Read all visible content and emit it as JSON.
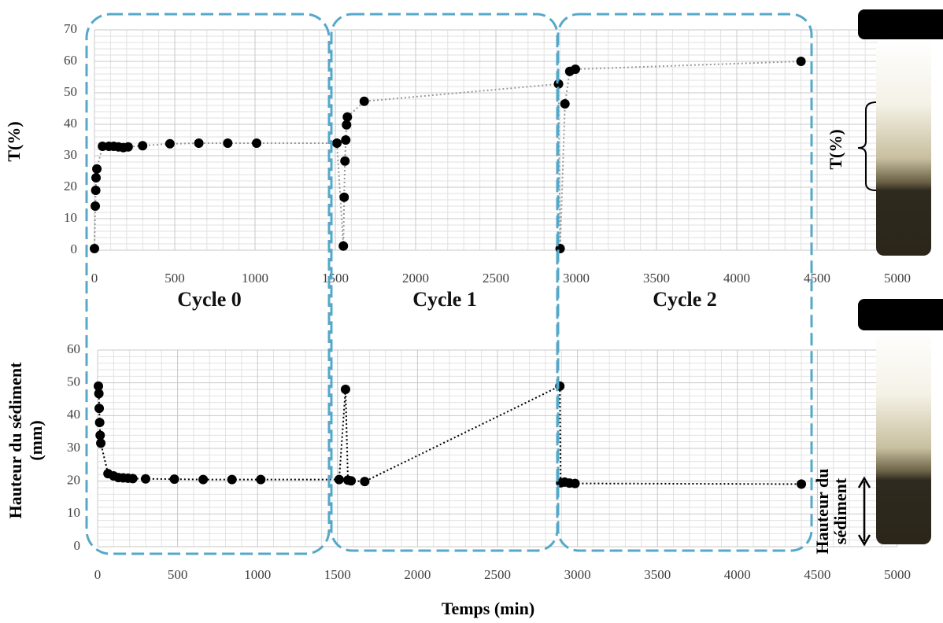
{
  "chart_data": [
    {
      "type": "line",
      "ylabel": "T(%)",
      "x": [
        0,
        5,
        8,
        10,
        15,
        50,
        90,
        120,
        150,
        180,
        210,
        300,
        470,
        650,
        830,
        1010,
        1510,
        1550,
        1555,
        1560,
        1565,
        1570,
        1575,
        1680,
        2890,
        2900,
        2930,
        2960,
        2995,
        4400
      ],
      "values": [
        0.5,
        14,
        19,
        23,
        25.8,
        33,
        33,
        33,
        32.8,
        32.6,
        32.8,
        33.2,
        33.8,
        34,
        34,
        34,
        34,
        1.3,
        16.8,
        28.3,
        35,
        39.8,
        42.3,
        47.3,
        52.8,
        0.5,
        46.5,
        56.8,
        57.5,
        60
      ],
      "color": "#000000",
      "line_color": "#999999",
      "xlim": [
        0,
        5000
      ],
      "xticks": [
        0,
        500,
        1000,
        1500,
        2000,
        2500,
        3000,
        3500,
        4000,
        4500,
        5000
      ],
      "ylim": [
        0,
        70
      ],
      "yticks": [
        0,
        10,
        20,
        30,
        40,
        50,
        60,
        70
      ],
      "grid": true,
      "annotations": [
        "Cycle 0",
        "Cycle 1",
        "Cycle 2"
      ],
      "tube_label": [
        "T(%)"
      ]
    },
    {
      "type": "line",
      "ylabel": [
        "Hauteur du sédiment",
        "(mm)"
      ],
      "xlabel": "Temps (min)",
      "x": [
        5,
        8,
        10,
        13,
        16,
        20,
        65,
        100,
        130,
        160,
        190,
        220,
        300,
        480,
        660,
        840,
        1020,
        1510,
        1550,
        1565,
        1585,
        1670,
        2890,
        2895,
        2920,
        2950,
        2985,
        4400
      ],
      "values": [
        49,
        46.7,
        42.2,
        37.9,
        34,
        31.6,
        22.3,
        21.6,
        21.1,
        21,
        20.9,
        20.8,
        20.7,
        20.6,
        20.5,
        20.5,
        20.5,
        20.5,
        48,
        20.3,
        20.1,
        19.9,
        49,
        19.5,
        19.7,
        19.4,
        19.3,
        19.1
      ],
      "color": "#000000",
      "line_color": "#000000",
      "xlim": [
        0,
        5000
      ],
      "xticks": [
        0,
        500,
        1000,
        1500,
        2000,
        2500,
        3000,
        3500,
        4000,
        4500,
        5000
      ],
      "ylim": [
        0,
        60
      ],
      "yticks": [
        0,
        10,
        20,
        30,
        40,
        50,
        60
      ],
      "grid": true,
      "tube_label": [
        "Hauteur du",
        "sédiment"
      ]
    }
  ]
}
